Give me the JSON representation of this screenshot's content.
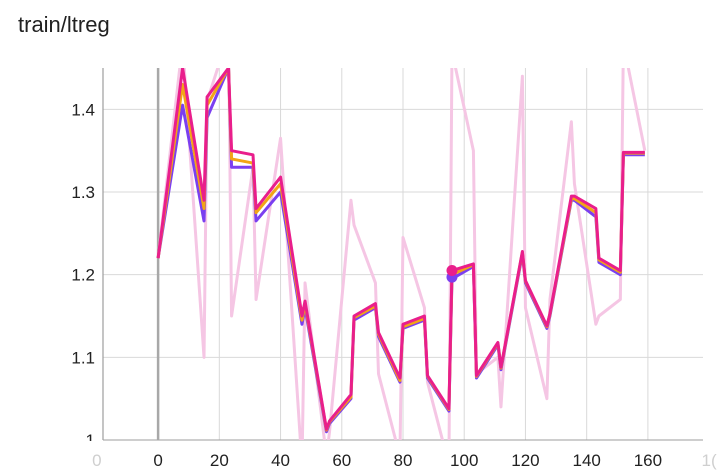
{
  "title": "train/ltreg",
  "chart_data": {
    "type": "line",
    "title": "train/ltreg",
    "xlabel": "",
    "ylabel": "",
    "xlim": [
      -18,
      178
    ],
    "ylim": [
      1.0,
      1.45
    ],
    "xticks": [
      0,
      20,
      40,
      60,
      80,
      100,
      120,
      140,
      160
    ],
    "xticks_faint": [
      "0",
      "1("
    ],
    "yticks": [
      1.1,
      1.2,
      1.3,
      1.4
    ],
    "ytick_labels": [
      "1.1",
      "1.2",
      "1.3",
      "1.4"
    ],
    "ytick_partial": "1",
    "grid": true,
    "legend": "none",
    "x": [
      0,
      8,
      15,
      16,
      23,
      24,
      31,
      32,
      40,
      47,
      48,
      55,
      56,
      63,
      64,
      71,
      72,
      79,
      80,
      87,
      88,
      95,
      96,
      103,
      104,
      111,
      112,
      119,
      120,
      127,
      128,
      135,
      136,
      143,
      144,
      151,
      152,
      159
    ],
    "raw_series": {
      "name": "raw",
      "color": "#f5c6e4",
      "values": [
        1.22,
        1.48,
        1.1,
        1.41,
        1.49,
        1.15,
        1.33,
        1.17,
        1.365,
        0.97,
        1.19,
        0.98,
        1.01,
        1.29,
        1.26,
        1.19,
        1.08,
        0.98,
        1.245,
        1.16,
        1.07,
        0.97,
        1.47,
        1.35,
        1.08,
        1.1,
        1.04,
        1.44,
        1.16,
        1.05,
        1.17,
        1.385,
        1.31,
        1.14,
        1.15,
        1.17,
        1.48,
        1.35
      ]
    },
    "series": [
      {
        "name": "purple",
        "color": "#7b3ff0",
        "values": [
          1.22,
          1.405,
          1.265,
          1.39,
          1.45,
          1.33,
          1.33,
          1.265,
          1.3,
          1.14,
          1.16,
          1.01,
          1.02,
          1.05,
          1.145,
          1.16,
          1.125,
          1.07,
          1.135,
          1.145,
          1.075,
          1.035,
          1.195,
          1.21,
          1.075,
          1.115,
          1.085,
          1.225,
          1.19,
          1.135,
          1.15,
          1.29,
          1.29,
          1.27,
          1.215,
          1.2,
          1.345,
          1.345
        ]
      },
      {
        "name": "orange",
        "color": "#f2a516",
        "values": [
          1.22,
          1.43,
          1.28,
          1.405,
          1.45,
          1.34,
          1.335,
          1.275,
          1.31,
          1.145,
          1.165,
          1.012,
          1.022,
          1.052,
          1.148,
          1.162,
          1.128,
          1.072,
          1.137,
          1.147,
          1.077,
          1.037,
          1.2,
          1.212,
          1.077,
          1.117,
          1.087,
          1.227,
          1.192,
          1.137,
          1.152,
          1.292,
          1.292,
          1.275,
          1.218,
          1.203,
          1.347,
          1.347
        ]
      },
      {
        "name": "magenta",
        "color": "#e91e8c",
        "values": [
          1.22,
          1.45,
          1.29,
          1.415,
          1.45,
          1.35,
          1.345,
          1.28,
          1.318,
          1.15,
          1.168,
          1.013,
          1.023,
          1.055,
          1.15,
          1.165,
          1.13,
          1.075,
          1.14,
          1.15,
          1.078,
          1.038,
          1.205,
          1.213,
          1.078,
          1.118,
          1.088,
          1.228,
          1.193,
          1.138,
          1.153,
          1.295,
          1.295,
          1.28,
          1.22,
          1.205,
          1.348,
          1.348
        ]
      }
    ],
    "markers": [
      {
        "series": "purple",
        "x": 96,
        "y": 1.197
      },
      {
        "series": "magenta",
        "x": 96,
        "y": 1.205
      }
    ]
  }
}
